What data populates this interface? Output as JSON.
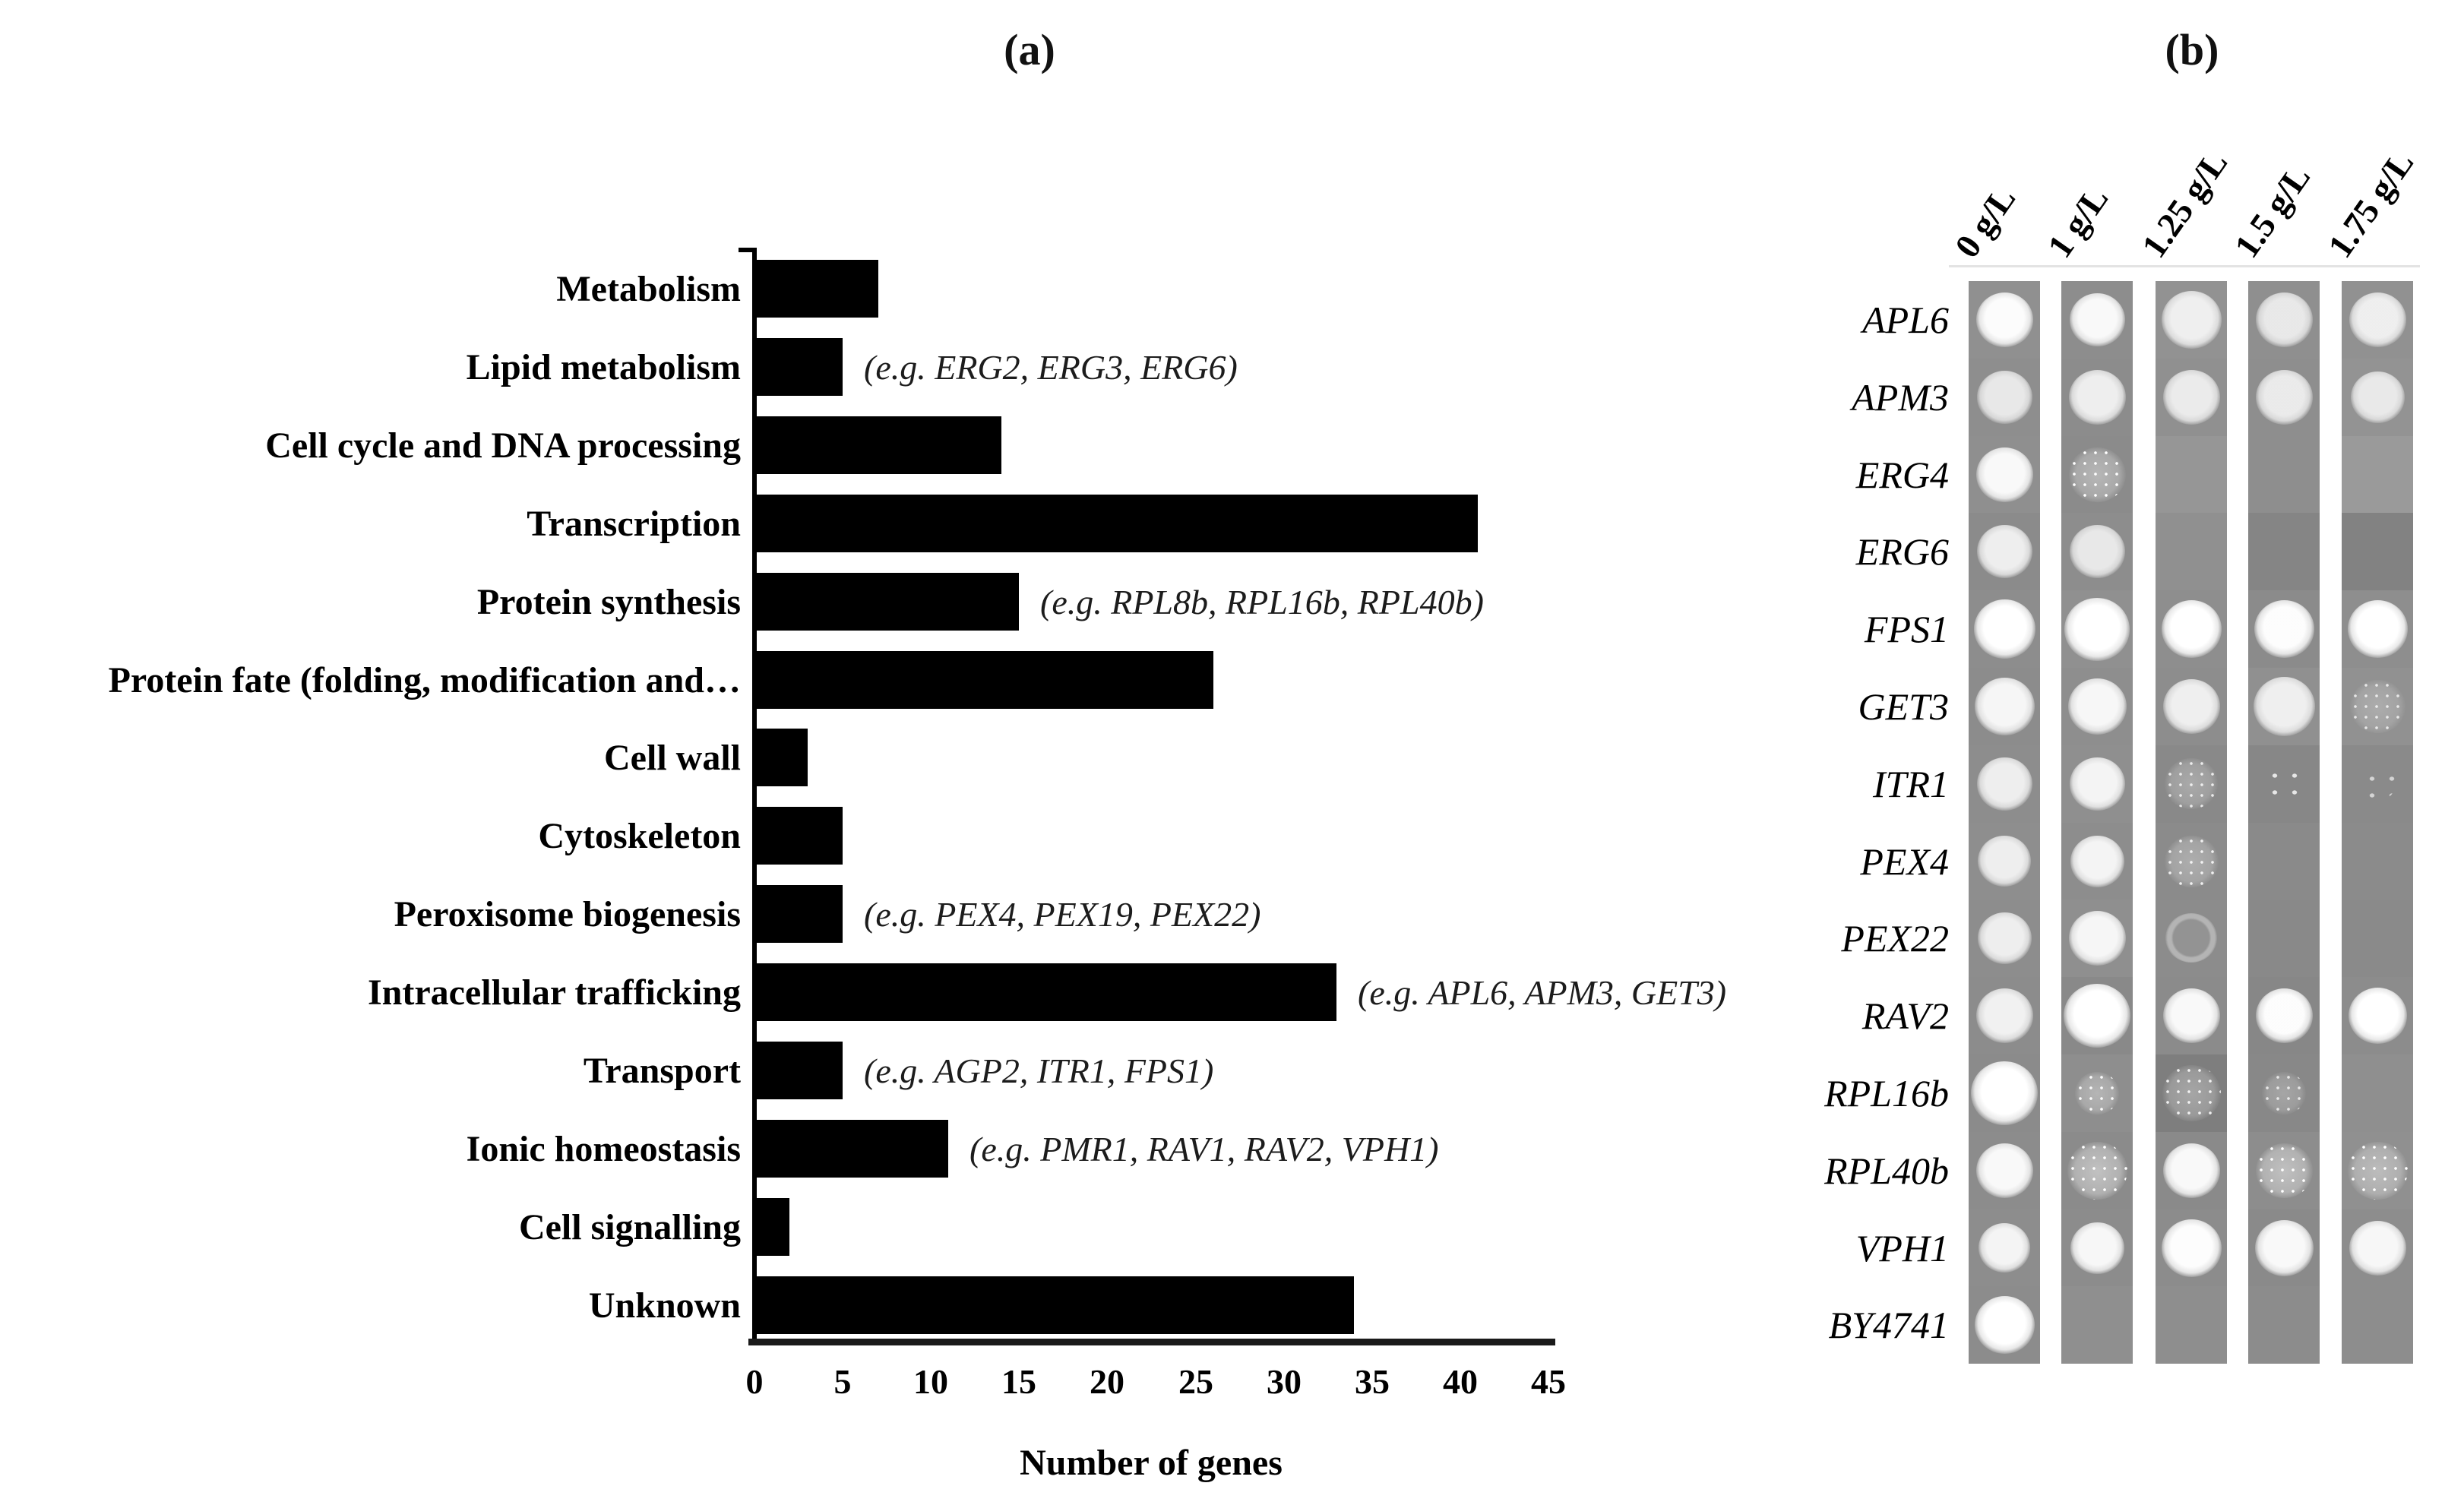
{
  "figure": {
    "panel_a_label": "(a)",
    "panel_b_label": "(b)"
  },
  "chart_data": {
    "type": "bar",
    "orientation": "horizontal",
    "title": "",
    "categories": [
      "Metabolism",
      "Lipid metabolism",
      "Cell cycle and DNA processing",
      "Transcription",
      "Protein synthesis",
      "Protein fate (folding, modification and…",
      "Cell wall",
      "Cytoskeleton",
      "Peroxisome biogenesis",
      "Intracellular trafficking",
      "Transport",
      "Ionic homeostasis",
      "Cell signalling",
      "Unknown"
    ],
    "values": [
      7,
      5,
      14,
      41,
      15,
      26,
      3,
      5,
      5,
      33,
      5,
      11,
      2,
      34
    ],
    "annotations": [
      "",
      "(e.g. ERG2, ERG3, ERG6)",
      "",
      "",
      "(e.g. RPL8b, RPL16b, RPL40b)",
      "",
      "",
      "",
      "(e.g. PEX4, PEX19, PEX22)",
      "(e.g. APL6, APM3, GET3)",
      "(e.g. AGP2, ITR1, FPS1)",
      "(e.g. PMR1, RAV1, RAV2, VPH1)",
      "",
      ""
    ],
    "xlabel": "Number of genes",
    "xticks": [
      0,
      5,
      10,
      15,
      20,
      25,
      30,
      35,
      40,
      45
    ],
    "xlim": [
      0,
      45
    ],
    "bar_color": "#000000",
    "grid": false,
    "legend_position": "none"
  },
  "assay": {
    "columns": [
      "0 g/L",
      "1 g/L",
      "1.25 g/L",
      "1.5 g/L",
      "1.75 g/L"
    ],
    "rows": [
      "APL6",
      "APM3",
      "ERG4",
      "ERG6",
      "FPS1",
      "GET3",
      "ITR1",
      "PEX4",
      "PEX22",
      "RAV2",
      "RPL16b",
      "RPL40b",
      "VPH1",
      "BY4741"
    ],
    "spots": [
      [
        [
          0.97,
          0.8,
          "solid"
        ],
        [
          0.95,
          0.78,
          "solid"
        ],
        [
          0.85,
          0.84,
          "solid"
        ],
        [
          0.8,
          0.8,
          "solid"
        ],
        [
          0.85,
          0.8,
          "solid"
        ]
      ],
      [
        [
          0.8,
          0.78,
          "solid"
        ],
        [
          0.85,
          0.8,
          "solid"
        ],
        [
          0.82,
          0.8,
          "solid"
        ],
        [
          0.82,
          0.8,
          "solid"
        ],
        [
          0.8,
          0.76,
          "solid"
        ]
      ],
      [
        [
          0.95,
          0.8,
          "solid"
        ],
        [
          0.75,
          0.8,
          "speck"
        ],
        null,
        null,
        null
      ],
      [
        [
          0.85,
          0.78,
          "solid"
        ],
        [
          0.8,
          0.78,
          "solid"
        ],
        null,
        null,
        null
      ],
      [
        [
          1.0,
          0.86,
          "solid"
        ],
        [
          1.0,
          0.92,
          "solid"
        ],
        [
          1.0,
          0.84,
          "solid"
        ],
        [
          0.98,
          0.84,
          "solid"
        ],
        [
          1.0,
          0.84,
          "solid"
        ]
      ],
      [
        [
          0.92,
          0.84,
          "solid"
        ],
        [
          0.93,
          0.82,
          "solid"
        ],
        [
          0.86,
          0.8,
          "solid"
        ],
        [
          0.86,
          0.86,
          "solid"
        ],
        [
          0.5,
          0.78,
          "speck"
        ]
      ],
      [
        [
          0.85,
          0.78,
          "solid"
        ],
        [
          0.9,
          0.78,
          "solid"
        ],
        [
          0.55,
          0.74,
          "speck"
        ],
        [
          0.35,
          0.6,
          "dots"
        ],
        [
          0.18,
          0.5,
          "dots"
        ]
      ],
      [
        [
          0.85,
          0.74,
          "solid"
        ],
        [
          0.9,
          0.76,
          "solid"
        ],
        [
          0.6,
          0.76,
          "speck"
        ],
        null,
        null
      ],
      [
        [
          0.85,
          0.76,
          "solid"
        ],
        [
          0.92,
          0.8,
          "solid"
        ],
        [
          0.35,
          0.72,
          "ring"
        ],
        null,
        null
      ],
      [
        [
          0.88,
          0.8,
          "solid"
        ],
        [
          1.0,
          0.94,
          "solid"
        ],
        [
          0.95,
          0.8,
          "solid"
        ],
        [
          0.98,
          0.8,
          "solid"
        ],
        [
          1.0,
          0.82,
          "solid"
        ]
      ],
      [
        [
          1.0,
          0.94,
          "solid"
        ],
        [
          0.7,
          0.62,
          "speck"
        ],
        [
          0.62,
          0.82,
          "speck"
        ],
        [
          0.5,
          0.62,
          "speck"
        ],
        null
      ],
      [
        [
          0.95,
          0.8,
          "solid"
        ],
        [
          0.95,
          0.84,
          "speck"
        ],
        [
          0.95,
          0.8,
          "solid"
        ],
        [
          0.9,
          0.8,
          "speck"
        ],
        [
          0.8,
          0.84,
          "speck"
        ]
      ],
      [
        [
          0.9,
          0.72,
          "solid"
        ],
        [
          0.93,
          0.76,
          "solid"
        ],
        [
          0.98,
          0.84,
          "solid"
        ],
        [
          0.95,
          0.82,
          "solid"
        ],
        [
          0.93,
          0.8,
          "solid"
        ]
      ],
      [
        [
          1.0,
          0.84,
          "solid"
        ],
        null,
        null,
        null,
        null
      ]
    ],
    "cell_bg": [
      [
        "#909090",
        "#8d8d8d",
        "#929292",
        "#8f8f8f",
        "#919191"
      ],
      [
        "#8e8e8e",
        "#8c8c8c",
        "#909090",
        "#8e8e8e",
        "#939393"
      ],
      [
        "#8f8f8f",
        "#8b8b8b",
        "#969696",
        "#8e8e8e",
        "#9a9a9a"
      ],
      [
        "#8b8b8b",
        "#8d8d8d",
        "#909090",
        "#858585",
        "#828282"
      ],
      [
        "#8d8d8d",
        "#909090",
        "#8e8e8e",
        "#8b8b8b",
        "#8e8e8e"
      ],
      [
        "#8c8c8c",
        "#8e8e8e",
        "#8d8d8d",
        "#909090",
        "#919191"
      ],
      [
        "#8d8d8d",
        "#8f8f8f",
        "#898989",
        "#878787",
        "#8a8a8a"
      ],
      [
        "#8e8e8e",
        "#8d8d8d",
        "#8b8b8b",
        "#8a8a8a",
        "#8b8b8b"
      ],
      [
        "#8d8d8d",
        "#8f8f8f",
        "#8c8c8c",
        "#898989",
        "#8a8a8a"
      ],
      [
        "#8c8c8c",
        "#898989",
        "#8b8b8b",
        "#878787",
        "#8c8c8c"
      ],
      [
        "#8b8b8b",
        "#8e8e8e",
        "#7e7e7e",
        "#888888",
        "#8f8f8f"
      ],
      [
        "#8c8c8c",
        "#8b8b8b",
        "#8a8a8a",
        "#8d8d8d",
        "#909090"
      ],
      [
        "#8d8d8d",
        "#8c8c8c",
        "#8c8c8c",
        "#8a8a8a",
        "#8d8d8d"
      ],
      [
        "#8c8c8c",
        "#8f8f8f",
        "#8e8e8e",
        "#8c8c8c",
        "#8d8d8d"
      ]
    ]
  }
}
